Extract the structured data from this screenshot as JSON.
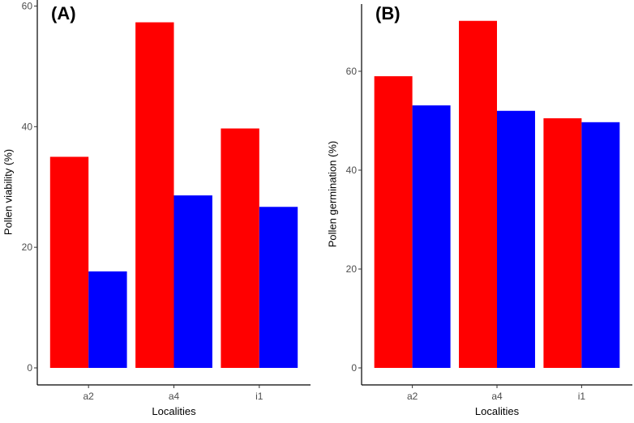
{
  "chart_data": [
    {
      "type": "bar",
      "panel_label": "(A)",
      "categories": [
        "a2",
        "a4",
        "i1"
      ],
      "series": [
        {
          "color": "#ff0000",
          "values": [
            35.0,
            57.3,
            39.7
          ]
        },
        {
          "color": "#0000ff",
          "values": [
            16.0,
            28.6,
            26.7
          ]
        }
      ],
      "xlabel": "Localities",
      "ylabel": "Pollen viability (%)",
      "ylim": [
        0,
        61
      ],
      "yticks": [
        0,
        20,
        40,
        60
      ],
      "grid": false
    },
    {
      "type": "bar",
      "panel_label": "(B)",
      "categories": [
        "a2",
        "a4",
        "i1"
      ],
      "series": [
        {
          "color": "#ff0000",
          "values": [
            59.0,
            70.2,
            50.5
          ]
        },
        {
          "color": "#0000ff",
          "values": [
            53.1,
            52.0,
            49.7
          ]
        }
      ],
      "xlabel": "Localities",
      "ylabel": "Pollen germination (%)",
      "ylim": [
        0,
        73.6
      ],
      "yticks": [
        0,
        20,
        40,
        60
      ],
      "grid": false
    }
  ]
}
